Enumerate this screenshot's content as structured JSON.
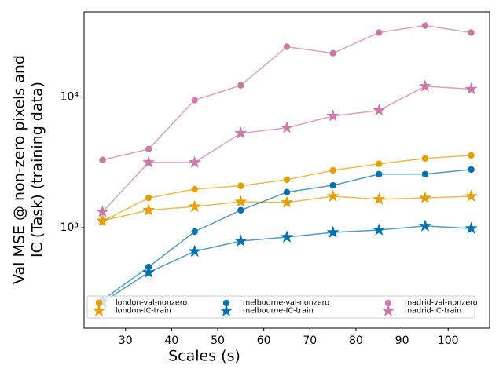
{
  "chart_data": {
    "type": "line",
    "xlabel": "Scales (s)",
    "ylabel": [
      "Val MSE @ non-zero pixels and",
      "IC (Task) (training data)"
    ],
    "x": [
      25,
      35,
      45,
      55,
      65,
      75,
      85,
      95,
      105
    ],
    "xlim": [
      21,
      109
    ],
    "xticks": [
      30,
      40,
      50,
      60,
      70,
      80,
      90,
      100
    ],
    "ylim": [
      170,
      45000
    ],
    "log_y": true,
    "yticks": [
      {
        "value": 1000,
        "label": "10³"
      },
      {
        "value": 10000,
        "label": "10⁴"
      }
    ],
    "legend": "lower center",
    "series": [
      {
        "name": "london-val-nonzero",
        "color": "#e69f00",
        "marker": "circle",
        "values": [
          1120,
          1690,
          1970,
          2090,
          2330,
          2750,
          3080,
          3390,
          3580
        ]
      },
      {
        "name": "london-IC-train",
        "color": "#e69f00",
        "marker": "star",
        "values": [
          1130,
          1360,
          1450,
          1580,
          1560,
          1740,
          1650,
          1690,
          1740
        ]
      },
      {
        "name": "melbourne-val-nonzero",
        "color": "#0072b2",
        "marker": "circle",
        "values": [
          279,
          500,
          933,
          1360,
          1870,
          2110,
          2570,
          2570,
          2790
        ]
      },
      {
        "name": "melbourne-IC-train",
        "color": "#0072b2",
        "marker": "star",
        "values": [
          268,
          454,
          659,
          790,
          847,
          920,
          960,
          1030,
          986
        ]
      },
      {
        "name": "madrid-val-nonzero",
        "color": "#cc79a7",
        "marker": "circle",
        "values": [
          3300,
          4000,
          9470,
          12300,
          24300,
          21700,
          31200,
          35300,
          31200
        ]
      },
      {
        "name": "madrid-IC-train",
        "color": "#cc79a7",
        "marker": "star",
        "values": [
          1320,
          3160,
          3160,
          5280,
          5820,
          7160,
          7910,
          12100,
          11500
        ]
      }
    ]
  }
}
